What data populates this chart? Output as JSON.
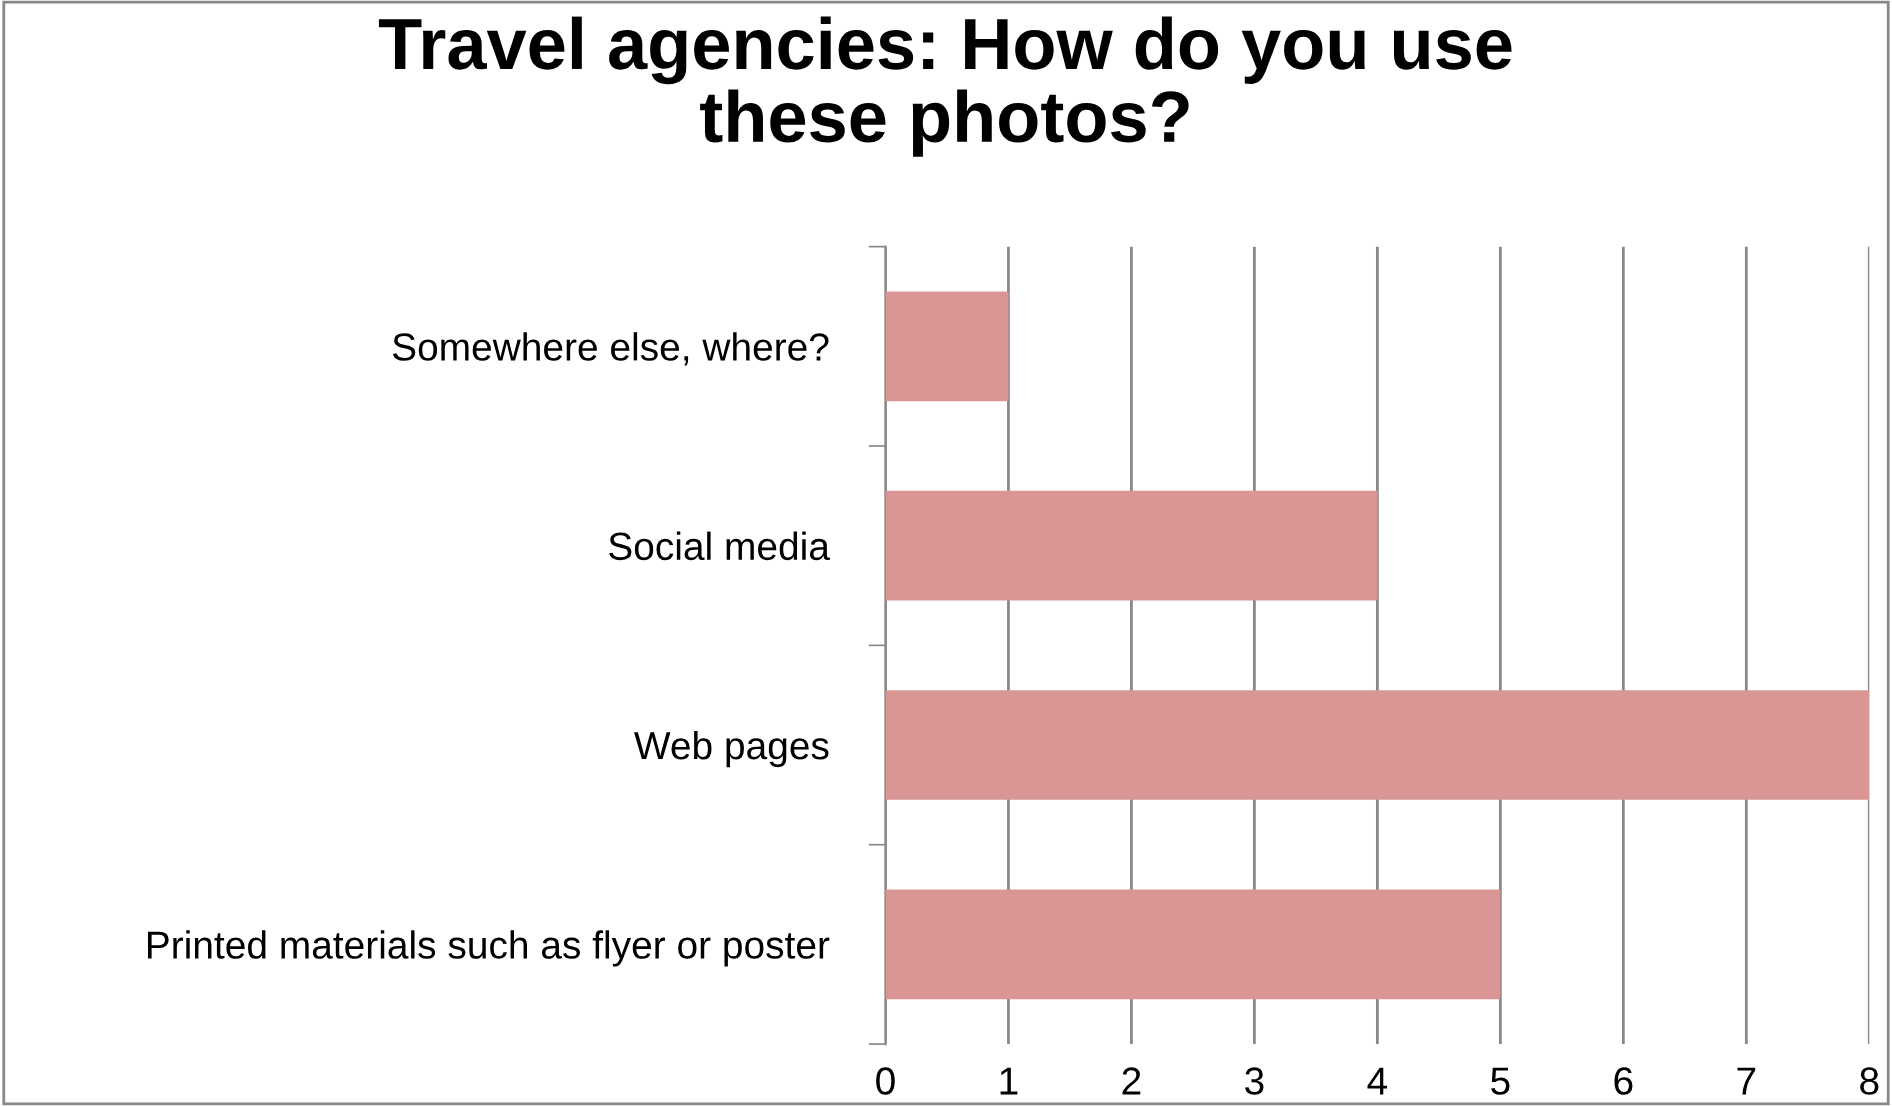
{
  "chart_data": {
    "type": "bar",
    "orientation": "horizontal",
    "title": "Travel agencies: How do you use\nthese photos?",
    "categories": [
      "Somewhere else, where?",
      "Social media",
      "Web pages",
      "Printed materials such as flyer or poster"
    ],
    "values": [
      1,
      4,
      8,
      5
    ],
    "color": "#d99694",
    "xlim": [
      0,
      8
    ],
    "xticks": [
      0,
      1,
      2,
      3,
      4,
      5,
      6,
      7,
      8
    ],
    "grid": "x",
    "legend": false
  }
}
